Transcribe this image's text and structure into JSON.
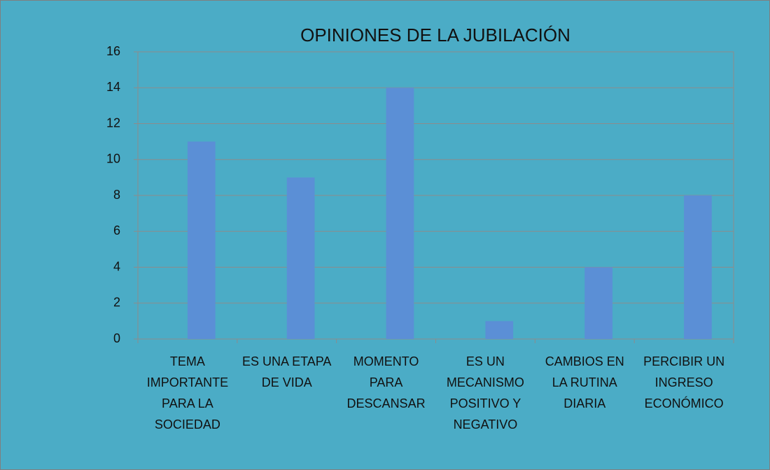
{
  "chart_data": {
    "type": "bar",
    "title": "OPINIONES DE LA JUBILACIÓN",
    "categories": [
      "TEMA IMPORTANTE PARA LA SOCIEDAD",
      "ES UNA ETAPA DE VIDA",
      "MOMENTO PARA DESCANSAR",
      "ES UN MECANISMO POSITIVO Y NEGATIVO",
      "CAMBIOS EN LA RUTINA DIARIA",
      "PERCIBIR UN INGRESO ECONÓMICO"
    ],
    "values": [
      11,
      9,
      14,
      1,
      4,
      8
    ],
    "color": "#5b8fd6",
    "ylim": [
      0,
      16
    ],
    "yticks": [
      0,
      2,
      4,
      6,
      8,
      10,
      12,
      14,
      16
    ],
    "grid": true
  }
}
